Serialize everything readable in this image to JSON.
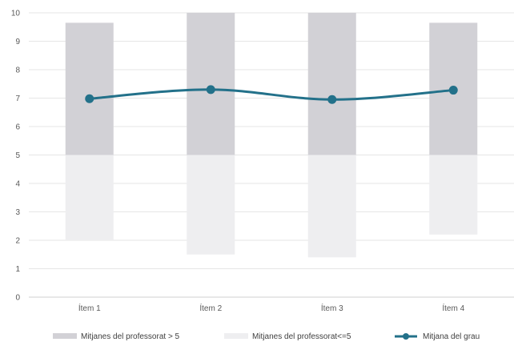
{
  "chart_data": {
    "type": "bar",
    "categories": [
      "Ítem 1",
      "Ítem 2",
      "Ítem 3",
      "Ítem 4"
    ],
    "ylim": [
      0,
      10
    ],
    "yticks": [
      0,
      1,
      2,
      3,
      4,
      5,
      6,
      7,
      8,
      9,
      10
    ],
    "grid": true,
    "legend_position": "bottom",
    "series": [
      {
        "name": "Mitjanes del professorat > 5",
        "kind": "floating-bar",
        "ranges": [
          [
            5,
            9.65
          ],
          [
            5,
            10
          ],
          [
            5,
            10
          ],
          [
            5,
            9.65
          ]
        ],
        "color": "#d2d1d6"
      },
      {
        "name": "Mitjanes del professorat<=5",
        "kind": "floating-bar",
        "ranges": [
          [
            2,
            5
          ],
          [
            1.5,
            5
          ],
          [
            1.4,
            5
          ],
          [
            2.2,
            5
          ]
        ],
        "color": "#eeeef0"
      },
      {
        "name": "Mitjana del grau",
        "kind": "line",
        "values": [
          6.98,
          7.3,
          6.95,
          7.28
        ],
        "color": "#23718a"
      }
    ]
  }
}
